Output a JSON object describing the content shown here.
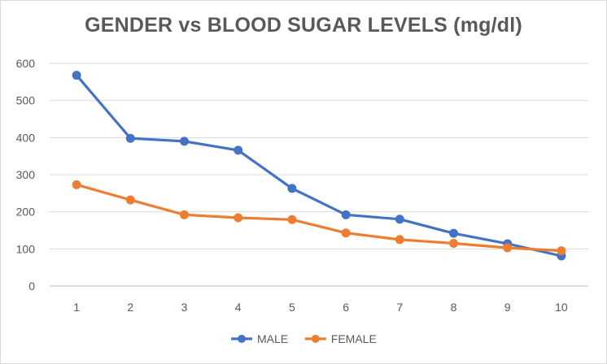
{
  "chart_data": {
    "type": "line",
    "title": "GENDER vs BLOOD SUGAR LEVELS (mg/dl)",
    "xlabel": "",
    "ylabel": "",
    "categories": [
      "1",
      "2",
      "3",
      "4",
      "5",
      "6",
      "7",
      "8",
      "9",
      "10"
    ],
    "ylim": [
      0,
      600
    ],
    "yticks": [
      "0",
      "100",
      "200",
      "300",
      "400",
      "500",
      "600"
    ],
    "grid": true,
    "legend_position": "bottom",
    "series": [
      {
        "name": "MALE",
        "color": "#4472c4",
        "values": [
          568,
          398,
          390,
          366,
          263,
          192,
          180,
          142,
          114,
          81
        ]
      },
      {
        "name": "FEMALE",
        "color": "#ed7d31",
        "values": [
          273,
          232,
          192,
          184,
          179,
          143,
          125,
          115,
          103,
          95
        ]
      }
    ]
  }
}
